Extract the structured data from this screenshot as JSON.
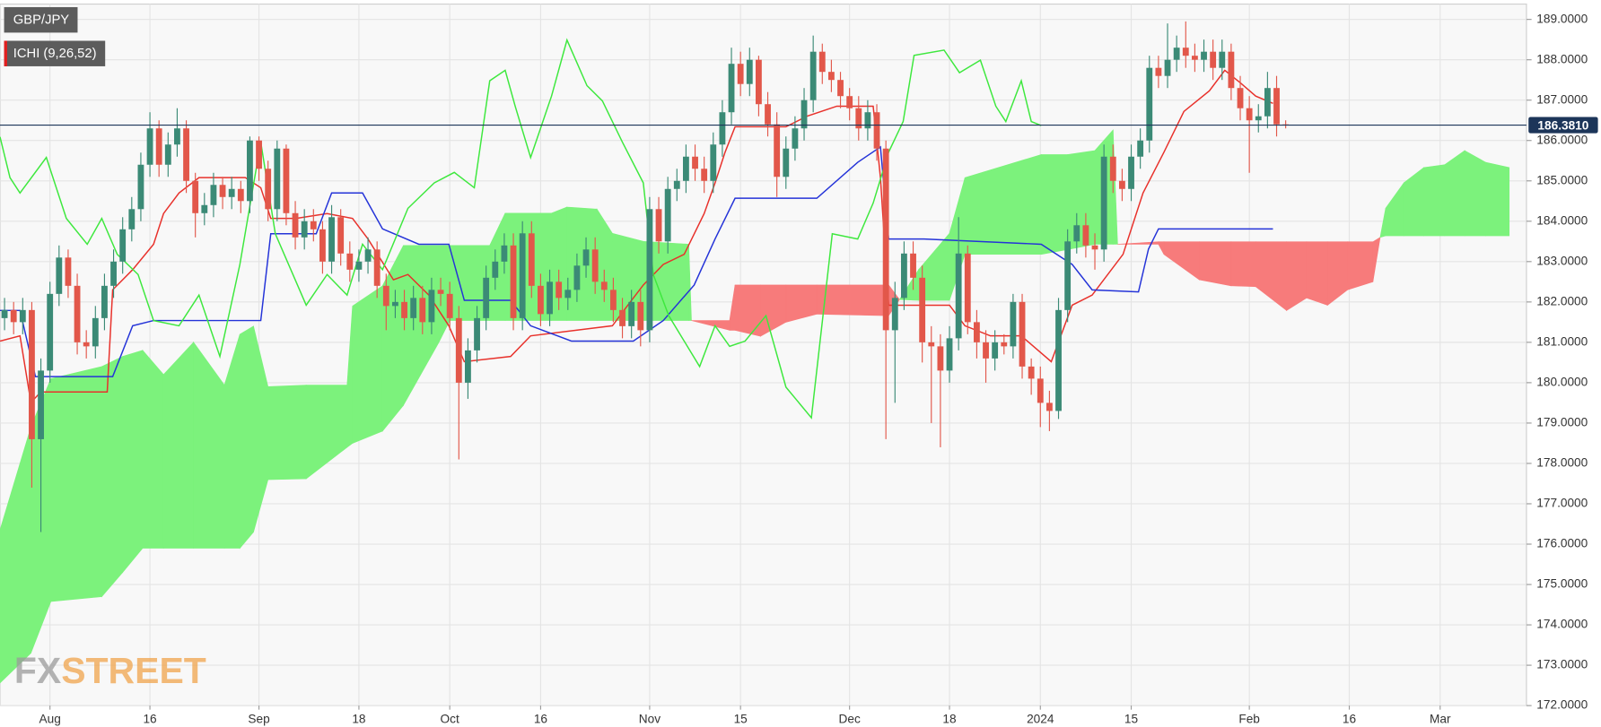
{
  "chart_data": {
    "type": "candlestick",
    "legend": {
      "symbol": "GBP/JPY",
      "indicator": "ICHI (9,26,52)"
    },
    "watermark": [
      "FX",
      "STREET"
    ],
    "last_price": {
      "value": 186.381,
      "label": "186.3810"
    },
    "ylim": [
      172,
      189.38
    ],
    "xlim": [
      -0.5,
      167.5
    ],
    "yticks": [
      {
        "value": 172,
        "label": "172.0000"
      },
      {
        "value": 173,
        "label": "173.0000"
      },
      {
        "value": 174,
        "label": "174.0000"
      },
      {
        "value": 175,
        "label": "175.0000"
      },
      {
        "value": 176,
        "label": "176.0000"
      },
      {
        "value": 177,
        "label": "177.0000"
      },
      {
        "value": 178,
        "label": "178.0000"
      },
      {
        "value": 179,
        "label": "179.0000"
      },
      {
        "value": 180,
        "label": "180.0000"
      },
      {
        "value": 181,
        "label": "181.0000"
      },
      {
        "value": 182,
        "label": "182.0000"
      },
      {
        "value": 183,
        "label": "183.0000"
      },
      {
        "value": 184,
        "label": "184.0000"
      },
      {
        "value": 185,
        "label": "185.0000"
      },
      {
        "value": 186,
        "label": "186.0000"
      },
      {
        "value": 187,
        "label": "187.0000"
      },
      {
        "value": 188,
        "label": "188.0000"
      },
      {
        "value": 189,
        "label": "189.0000"
      }
    ],
    "xticks": [
      {
        "value": 5,
        "label": "Aug"
      },
      {
        "value": 16,
        "label": "16"
      },
      {
        "value": 28,
        "label": "Sep"
      },
      {
        "value": 39,
        "label": "18"
      },
      {
        "value": 49,
        "label": "Oct"
      },
      {
        "value": 59,
        "label": "16"
      },
      {
        "value": 71,
        "label": "Nov"
      },
      {
        "value": 81,
        "label": "15"
      },
      {
        "value": 93,
        "label": "Dec"
      },
      {
        "value": 104,
        "label": "18"
      },
      {
        "value": 114,
        "label": "2024"
      },
      {
        "value": 124,
        "label": "15"
      },
      {
        "value": 137,
        "label": "Feb"
      },
      {
        "value": 148,
        "label": "16"
      },
      {
        "value": 158,
        "label": "Mar"
      }
    ],
    "grid": true,
    "up_color": "#3b8a76",
    "down_color": "#e2574a",
    "price_line_color": "#1c3559",
    "candles": {
      "open": [
        181.6,
        181.8,
        181.5,
        181.8,
        178.6,
        180.3,
        182.2,
        183.1,
        182.4,
        181.0,
        180.9,
        181.6,
        182.4,
        183.0,
        183.8,
        184.3,
        185.4,
        186.3,
        185.4,
        185.9,
        186.3,
        185.0,
        184.2,
        184.4,
        184.9,
        184.6,
        184.8,
        184.5,
        186.0,
        185.3,
        184.3,
        185.8,
        184.2,
        183.6,
        184.0,
        183.8,
        183.0,
        184.1,
        183.2,
        182.8,
        183.0,
        183.3,
        182.4,
        181.9,
        182.0,
        181.6,
        182.1,
        181.5,
        182.3,
        182.2,
        181.6,
        180.0,
        180.8,
        181.6,
        182.6,
        183.0,
        183.4,
        181.6,
        183.7,
        182.4,
        181.7,
        182.5,
        182.1,
        182.3,
        182.9,
        183.3,
        182.5,
        182.3,
        181.8,
        181.4,
        182.0,
        181.3,
        184.3,
        183.5,
        184.8,
        185.0,
        185.6,
        185.3,
        185.0,
        185.9,
        186.7,
        187.9,
        187.4,
        188.0,
        186.9,
        186.4,
        185.1,
        185.8,
        186.3,
        187.0,
        188.2,
        187.7,
        187.5,
        187.1,
        186.8,
        186.3,
        186.7,
        185.8,
        181.3,
        182.1,
        183.2,
        182.6,
        181.0,
        180.9,
        180.3,
        181.1,
        183.2,
        181.5,
        181.0,
        180.6,
        181.0,
        180.9,
        182.0,
        180.4,
        180.1,
        179.5,
        179.3,
        181.8,
        183.5,
        183.9,
        183.4,
        183.3,
        185.6,
        185.0,
        184.8,
        185.6,
        186.0,
        187.8,
        187.6,
        188.0,
        188.3,
        188.1,
        188.0,
        188.2,
        187.8,
        188.2,
        187.3,
        186.8,
        186.5,
        186.6,
        187.3,
        186.4
      ],
      "high": [
        182.1,
        182.0,
        182.1,
        182.0,
        180.6,
        182.5,
        183.4,
        183.3,
        182.7,
        181.3,
        181.9,
        182.7,
        183.3,
        184.1,
        184.6,
        185.7,
        186.7,
        186.5,
        186.2,
        186.8,
        186.5,
        185.2,
        184.7,
        185.2,
        185.1,
        185.1,
        185.0,
        186.1,
        186.1,
        185.5,
        186.0,
        185.9,
        184.5,
        184.3,
        184.3,
        184.0,
        184.4,
        184.3,
        183.5,
        183.3,
        183.6,
        183.5,
        182.7,
        182.3,
        182.3,
        182.4,
        182.4,
        182.6,
        182.6,
        182.5,
        181.9,
        181.1,
        181.9,
        182.9,
        183.3,
        183.7,
        183.7,
        184.0,
        184.0,
        182.7,
        182.8,
        182.8,
        182.6,
        183.2,
        183.6,
        183.6,
        182.8,
        182.6,
        182.1,
        182.3,
        182.3,
        184.6,
        184.6,
        185.1,
        185.3,
        185.9,
        185.9,
        185.6,
        186.2,
        187.0,
        188.3,
        188.2,
        188.3,
        188.1,
        187.2,
        186.7,
        186.1,
        186.6,
        187.3,
        188.6,
        188.4,
        188.0,
        187.7,
        187.3,
        187.1,
        187.0,
        186.9,
        186.0,
        182.5,
        183.5,
        183.5,
        182.9,
        181.4,
        181.2,
        181.4,
        184.1,
        183.4,
        181.8,
        181.3,
        181.3,
        181.2,
        182.2,
        182.2,
        180.6,
        180.4,
        179.8,
        182.1,
        183.8,
        184.2,
        184.2,
        183.7,
        185.9,
        185.9,
        185.3,
        185.9,
        186.3,
        188.1,
        188.1,
        188.9,
        188.6,
        188.95,
        188.4,
        188.5,
        188.5,
        188.5,
        188.4,
        187.6,
        187.1,
        186.9,
        187.7,
        187.6,
        186.5
      ],
      "low": [
        181.3,
        181.2,
        181.2,
        177.4,
        176.3,
        180.0,
        181.9,
        182.1,
        180.7,
        180.6,
        180.6,
        181.3,
        182.1,
        182.7,
        183.5,
        184.0,
        185.1,
        185.1,
        185.1,
        185.6,
        184.7,
        183.6,
        183.9,
        184.1,
        184.3,
        184.3,
        184.2,
        184.2,
        185.0,
        184.0,
        184.0,
        183.9,
        183.3,
        183.3,
        183.5,
        182.7,
        182.7,
        182.9,
        182.5,
        182.5,
        182.7,
        182.1,
        181.3,
        181.6,
        181.3,
        181.3,
        181.2,
        181.2,
        181.9,
        181.3,
        178.1,
        179.6,
        180.5,
        181.3,
        182.3,
        182.7,
        181.3,
        181.3,
        182.1,
        181.4,
        181.4,
        181.8,
        181.8,
        182.0,
        182.6,
        182.2,
        182.0,
        181.5,
        181.1,
        181.1,
        180.9,
        181.0,
        183.2,
        183.2,
        184.5,
        184.7,
        185.0,
        184.7,
        184.7,
        185.6,
        186.4,
        187.1,
        187.1,
        186.6,
        186.1,
        184.6,
        184.8,
        185.5,
        186.0,
        186.7,
        187.4,
        187.2,
        186.8,
        186.5,
        186.0,
        186.0,
        185.5,
        178.6,
        179.5,
        181.8,
        182.3,
        180.5,
        179.0,
        178.4,
        180.0,
        180.8,
        181.2,
        180.6,
        180.0,
        180.3,
        180.7,
        180.6,
        180.1,
        179.7,
        178.9,
        178.8,
        179.1,
        181.5,
        183.2,
        183.1,
        182.8,
        183.0,
        184.7,
        184.5,
        184.5,
        185.3,
        185.7,
        187.3,
        187.3,
        187.7,
        187.8,
        187.7,
        187.7,
        187.5,
        187.5,
        187.0,
        186.5,
        185.2,
        186.2,
        186.3,
        186.1,
        186.3
      ],
      "close": [
        181.8,
        181.5,
        181.8,
        178.6,
        180.3,
        182.2,
        183.1,
        182.4,
        181.0,
        180.9,
        181.6,
        182.4,
        183.0,
        183.8,
        184.3,
        185.4,
        186.3,
        185.4,
        185.9,
        186.3,
        185.0,
        184.2,
        184.4,
        184.9,
        184.6,
        184.8,
        184.5,
        186.0,
        185.3,
        184.3,
        185.8,
        184.2,
        183.6,
        184.0,
        183.8,
        183.0,
        184.1,
        183.2,
        182.8,
        183.0,
        183.3,
        182.4,
        181.9,
        182.0,
        181.6,
        182.1,
        181.5,
        182.3,
        182.2,
        181.6,
        180.0,
        180.8,
        181.6,
        182.6,
        183.0,
        183.4,
        181.6,
        183.7,
        182.4,
        181.7,
        182.5,
        182.1,
        182.3,
        182.9,
        183.3,
        182.5,
        182.3,
        181.8,
        181.4,
        182.0,
        181.3,
        184.3,
        183.5,
        184.8,
        185.0,
        185.6,
        185.3,
        185.0,
        185.9,
        186.7,
        187.9,
        187.4,
        188.0,
        186.9,
        186.4,
        185.1,
        185.8,
        186.3,
        187.0,
        188.2,
        187.7,
        187.5,
        187.1,
        186.8,
        186.3,
        186.7,
        185.8,
        181.3,
        182.1,
        183.2,
        182.6,
        181.0,
        180.9,
        180.3,
        181.1,
        183.2,
        181.5,
        181.0,
        180.6,
        181.0,
        180.9,
        182.0,
        180.4,
        180.1,
        179.5,
        179.3,
        181.8,
        183.5,
        183.9,
        183.4,
        183.3,
        185.6,
        185.0,
        184.8,
        185.6,
        186.0,
        187.8,
        187.6,
        188.0,
        188.3,
        188.1,
        188.0,
        188.2,
        187.8,
        188.2,
        187.3,
        186.8,
        186.5,
        186.6,
        187.3,
        186.4,
        186.381
      ]
    },
    "cloud": {
      "up_color": "#7cf27c",
      "down_color": "#f77b7b",
      "x": [
        -0.5,
        2.9,
        5.1,
        10.7,
        13,
        15.2,
        17.5,
        20.8,
        24.2,
        25.9,
        27.4,
        29,
        33.2,
        37.7,
        38.3,
        41.6,
        43.9,
        47.8,
        49,
        53.4,
        55.1,
        60.2,
        61.9,
        65.2,
        66.9,
        70.3,
        75.3,
        75.6,
        79.8,
        80.4,
        83.2,
        86,
        89.4,
        97.3,
        98.5,
        100.6,
        104,
        105.7,
        114.1,
        117,
        120,
        122,
        122.5,
        127,
        127.6,
        131.5,
        135,
        137.7,
        141.1,
        143.3,
        145.6,
        147.8,
        150.6,
        151.4,
        152,
        154,
        156.2,
        158.5,
        160.7,
        163,
        165.6
      ],
      "span_a": [
        176.35,
        178.9,
        180.1,
        180.4,
        180.65,
        180.8,
        180.2,
        181.0,
        179.94,
        181.2,
        181.4,
        179.9,
        179.94,
        179.94,
        181.9,
        182.4,
        183.4,
        183.4,
        183.4,
        183.4,
        184.2,
        184.2,
        184.35,
        184.3,
        183.7,
        183.5,
        183.43,
        181.54,
        181.3,
        181.3,
        181.15,
        181.5,
        181.7,
        181.66,
        182.06,
        182.8,
        183.7,
        185.08,
        185.65,
        185.65,
        185.75,
        186.26,
        183.43,
        183.43,
        183.18,
        182.55,
        182.4,
        182.38,
        181.79,
        182.1,
        181.92,
        182.3,
        182.5,
        183.6,
        184.32,
        184.95,
        185.33,
        185.4,
        185.75,
        185.46,
        185.33
      ],
      "span_b": [
        172.56,
        173.3,
        174.58,
        174.7,
        175.3,
        175.9,
        175.9,
        175.9,
        175.9,
        175.9,
        176.3,
        177.6,
        177.62,
        178.4,
        178.5,
        178.8,
        179.44,
        181.0,
        181.54,
        181.54,
        181.54,
        181.54,
        181.54,
        181.54,
        181.54,
        181.54,
        181.54,
        181.54,
        181.54,
        182.42,
        182.42,
        182.42,
        182.42,
        182.42,
        182.06,
        182.04,
        182.04,
        183.18,
        183.18,
        183.3,
        183.43,
        183.43,
        183.43,
        183.49,
        183.49,
        183.49,
        183.49,
        183.49,
        183.49,
        183.49,
        183.49,
        183.49,
        183.49,
        183.6,
        183.64,
        183.64,
        183.64,
        183.64,
        183.64,
        183.64,
        183.64
      ]
    },
    "lines": [
      {
        "color": "#e8312b",
        "x": [
          -0.5,
          1.7,
          2.9,
          4.0,
          11.3,
          11.9,
          14.1,
          16.4,
          17.5,
          19.2,
          21.4,
          26.5,
          28.2,
          29.3,
          32.1,
          35.5,
          38.3,
          40.0,
          42.8,
          44.4,
          46.7,
          48.9,
          50.6,
          55.7,
          57.9,
          66.9,
          68.6,
          70.3,
          72.5,
          74.8,
          77.0,
          78.2,
          79.3,
          80.4,
          86.0,
          88.3,
          91.6,
          95.6,
          96.4,
          97.3,
          104.0,
          105.7,
          108.5,
          111.9,
          115.2,
          117.5,
          119.7,
          123.1,
          125.3,
          127.6,
          129.8,
          132.6,
          134.3,
          136.0,
          137.7,
          139.6
        ],
        "values": [
          181.03,
          181.16,
          179.51,
          179.77,
          179.77,
          182.3,
          182.8,
          183.43,
          184.19,
          184.7,
          185.08,
          185.08,
          184.83,
          184.07,
          184.07,
          184.19,
          184.07,
          183.56,
          182.55,
          182.68,
          182.17,
          181.41,
          180.52,
          180.65,
          181.16,
          181.41,
          181.92,
          182.42,
          182.93,
          183.18,
          184.19,
          184.95,
          185.71,
          186.34,
          186.34,
          186.6,
          186.85,
          186.85,
          185.08,
          181.92,
          181.92,
          181.41,
          181.16,
          181.16,
          180.52,
          181.92,
          182.17,
          183.18,
          184.7,
          185.71,
          186.72,
          187.23,
          187.74,
          187.43,
          187.1,
          186.92
        ]
      },
      {
        "color": "#2433d8",
        "x": [
          -0.5,
          1.7,
          3.4,
          11.9,
          14.1,
          16.4,
          28.2,
          29.3,
          34.3,
          36.0,
          39.4,
          41.6,
          45.6,
          48.9,
          50.6,
          55.7,
          57.9,
          62.4,
          69.2,
          72.5,
          75.9,
          78.2,
          80.4,
          89.4,
          93.9,
          96.4,
          97.3,
          101.2,
          114.1,
          117.5,
          119.7,
          124.8,
          125.9,
          127.0,
          139.6
        ],
        "values": [
          181.79,
          181.79,
          180.15,
          180.15,
          181.41,
          181.54,
          181.54,
          183.69,
          183.69,
          184.7,
          184.7,
          183.81,
          183.43,
          183.43,
          182.04,
          182.04,
          181.41,
          181.03,
          181.03,
          181.54,
          182.42,
          183.56,
          184.57,
          184.57,
          185.46,
          185.84,
          183.56,
          183.56,
          183.43,
          182.93,
          182.3,
          182.25,
          183.31,
          183.81,
          183.81
        ]
      },
      {
        "color": "#3ee83e",
        "x": [
          -0.5,
          0.6,
          1.7,
          4.6,
          6.8,
          9.1,
          10.7,
          12.4,
          14.7,
          16.4,
          19.2,
          21.4,
          23.7,
          25.9,
          28.2,
          29.8,
          33.2,
          35.5,
          37.7,
          39.4,
          41.6,
          44.4,
          47.3,
          49.5,
          51.7,
          53.4,
          55.1,
          56.2,
          57.9,
          60.2,
          61.9,
          64.1,
          65.8,
          68.0,
          70.3,
          71.4,
          73.1,
          74.8,
          76.5,
          78.2,
          79.8,
          81.5,
          83.8,
          86.0,
          88.8,
          91.1,
          93.9,
          95.6,
          97.3,
          98.9,
          100.1,
          103.4,
          105.1,
          107.4,
          109.1,
          110.2,
          111.9,
          113.0,
          114.1
        ],
        "values": [
          186.09,
          185.08,
          184.7,
          185.58,
          184.07,
          183.43,
          184.07,
          183.18,
          182.68,
          181.54,
          181.41,
          182.17,
          180.65,
          182.93,
          185.96,
          183.69,
          181.92,
          182.68,
          182.17,
          183.43,
          182.8,
          184.32,
          184.95,
          185.21,
          184.83,
          187.48,
          187.74,
          186.85,
          185.58,
          187.1,
          188.49,
          187.36,
          186.98,
          185.96,
          184.95,
          182.68,
          181.66,
          181.03,
          180.4,
          181.41,
          180.9,
          181.03,
          181.66,
          179.89,
          179.13,
          183.69,
          183.56,
          184.45,
          185.71,
          186.47,
          188.11,
          188.24,
          187.68,
          187.99,
          186.85,
          186.47,
          187.48,
          186.47,
          186.37
        ]
      }
    ]
  }
}
